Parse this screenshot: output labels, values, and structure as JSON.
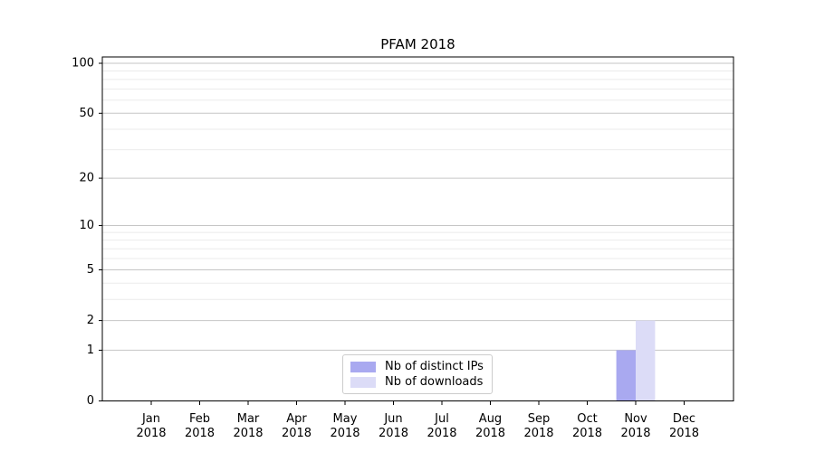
{
  "chart_data": {
    "type": "bar",
    "title": "PFAM 2018",
    "categories": [
      "Jan",
      "Feb",
      "Mar",
      "Apr",
      "May",
      "Jun",
      "Jul",
      "Aug",
      "Sep",
      "Oct",
      "Nov",
      "Dec"
    ],
    "category_year": "2018",
    "series": [
      {
        "name": "Nb of distinct IPs",
        "color": "#a9a9f0",
        "values": [
          0,
          0,
          0,
          0,
          0,
          0,
          0,
          0,
          0,
          0,
          1,
          0
        ]
      },
      {
        "name": "Nb of downloads",
        "color": "#dcdcf7",
        "values": [
          0,
          0,
          0,
          0,
          0,
          0,
          0,
          0,
          0,
          0,
          2,
          0
        ]
      }
    ],
    "yscale": "log1p",
    "ylim": [
      0,
      110
    ],
    "yticks": [
      0,
      1,
      2,
      5,
      10,
      20,
      50,
      100
    ],
    "yticks_minor": [
      3,
      4,
      6,
      7,
      8,
      9,
      30,
      40,
      60,
      70,
      80,
      90
    ],
    "grid": "horizontal",
    "legend_position": "lower-center",
    "colors": {
      "spine": "#000000",
      "tick_label": "#000000",
      "grid_major": "#c6c6c6",
      "grid_minor": "#ebebeb",
      "legend_border": "#cccccc",
      "background": "#ffffff"
    }
  }
}
